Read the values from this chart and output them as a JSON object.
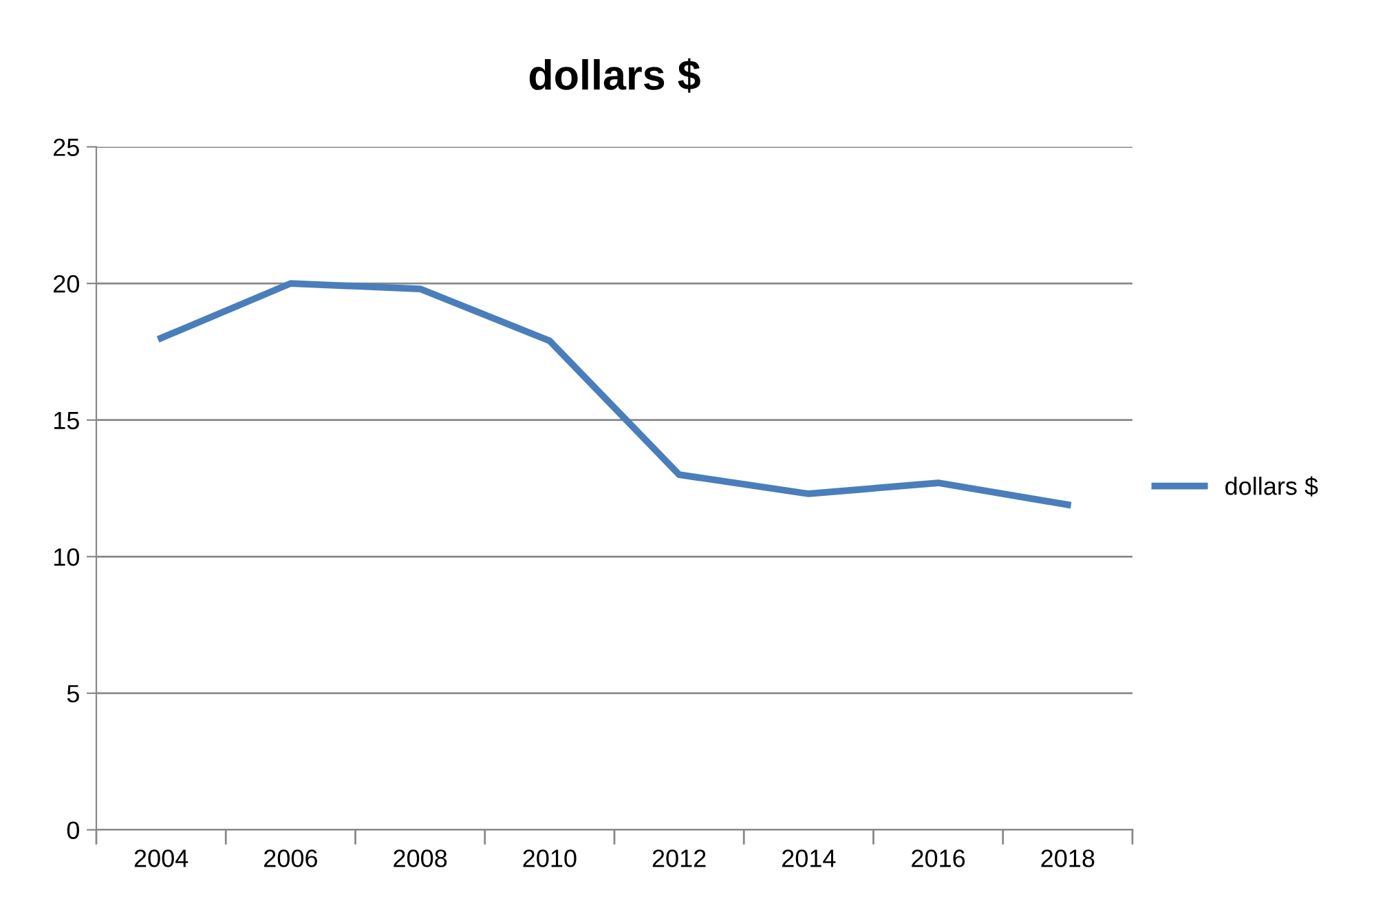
{
  "chart_data": {
    "type": "line",
    "title": "dollars $",
    "categories": [
      "2004",
      "2006",
      "2008",
      "2010",
      "2012",
      "2014",
      "2016",
      "2018"
    ],
    "series": [
      {
        "name": "dollars $",
        "color": "#4a7ebb",
        "values": [
          18,
          20,
          19.8,
          17.9,
          13,
          12.3,
          12.7,
          11.9
        ]
      }
    ],
    "ylim": [
      0,
      25
    ],
    "yticks": [
      0,
      5,
      10,
      15,
      20,
      25
    ],
    "grid": "y",
    "legend": "right",
    "marker": "none",
    "line_style": "solid"
  }
}
